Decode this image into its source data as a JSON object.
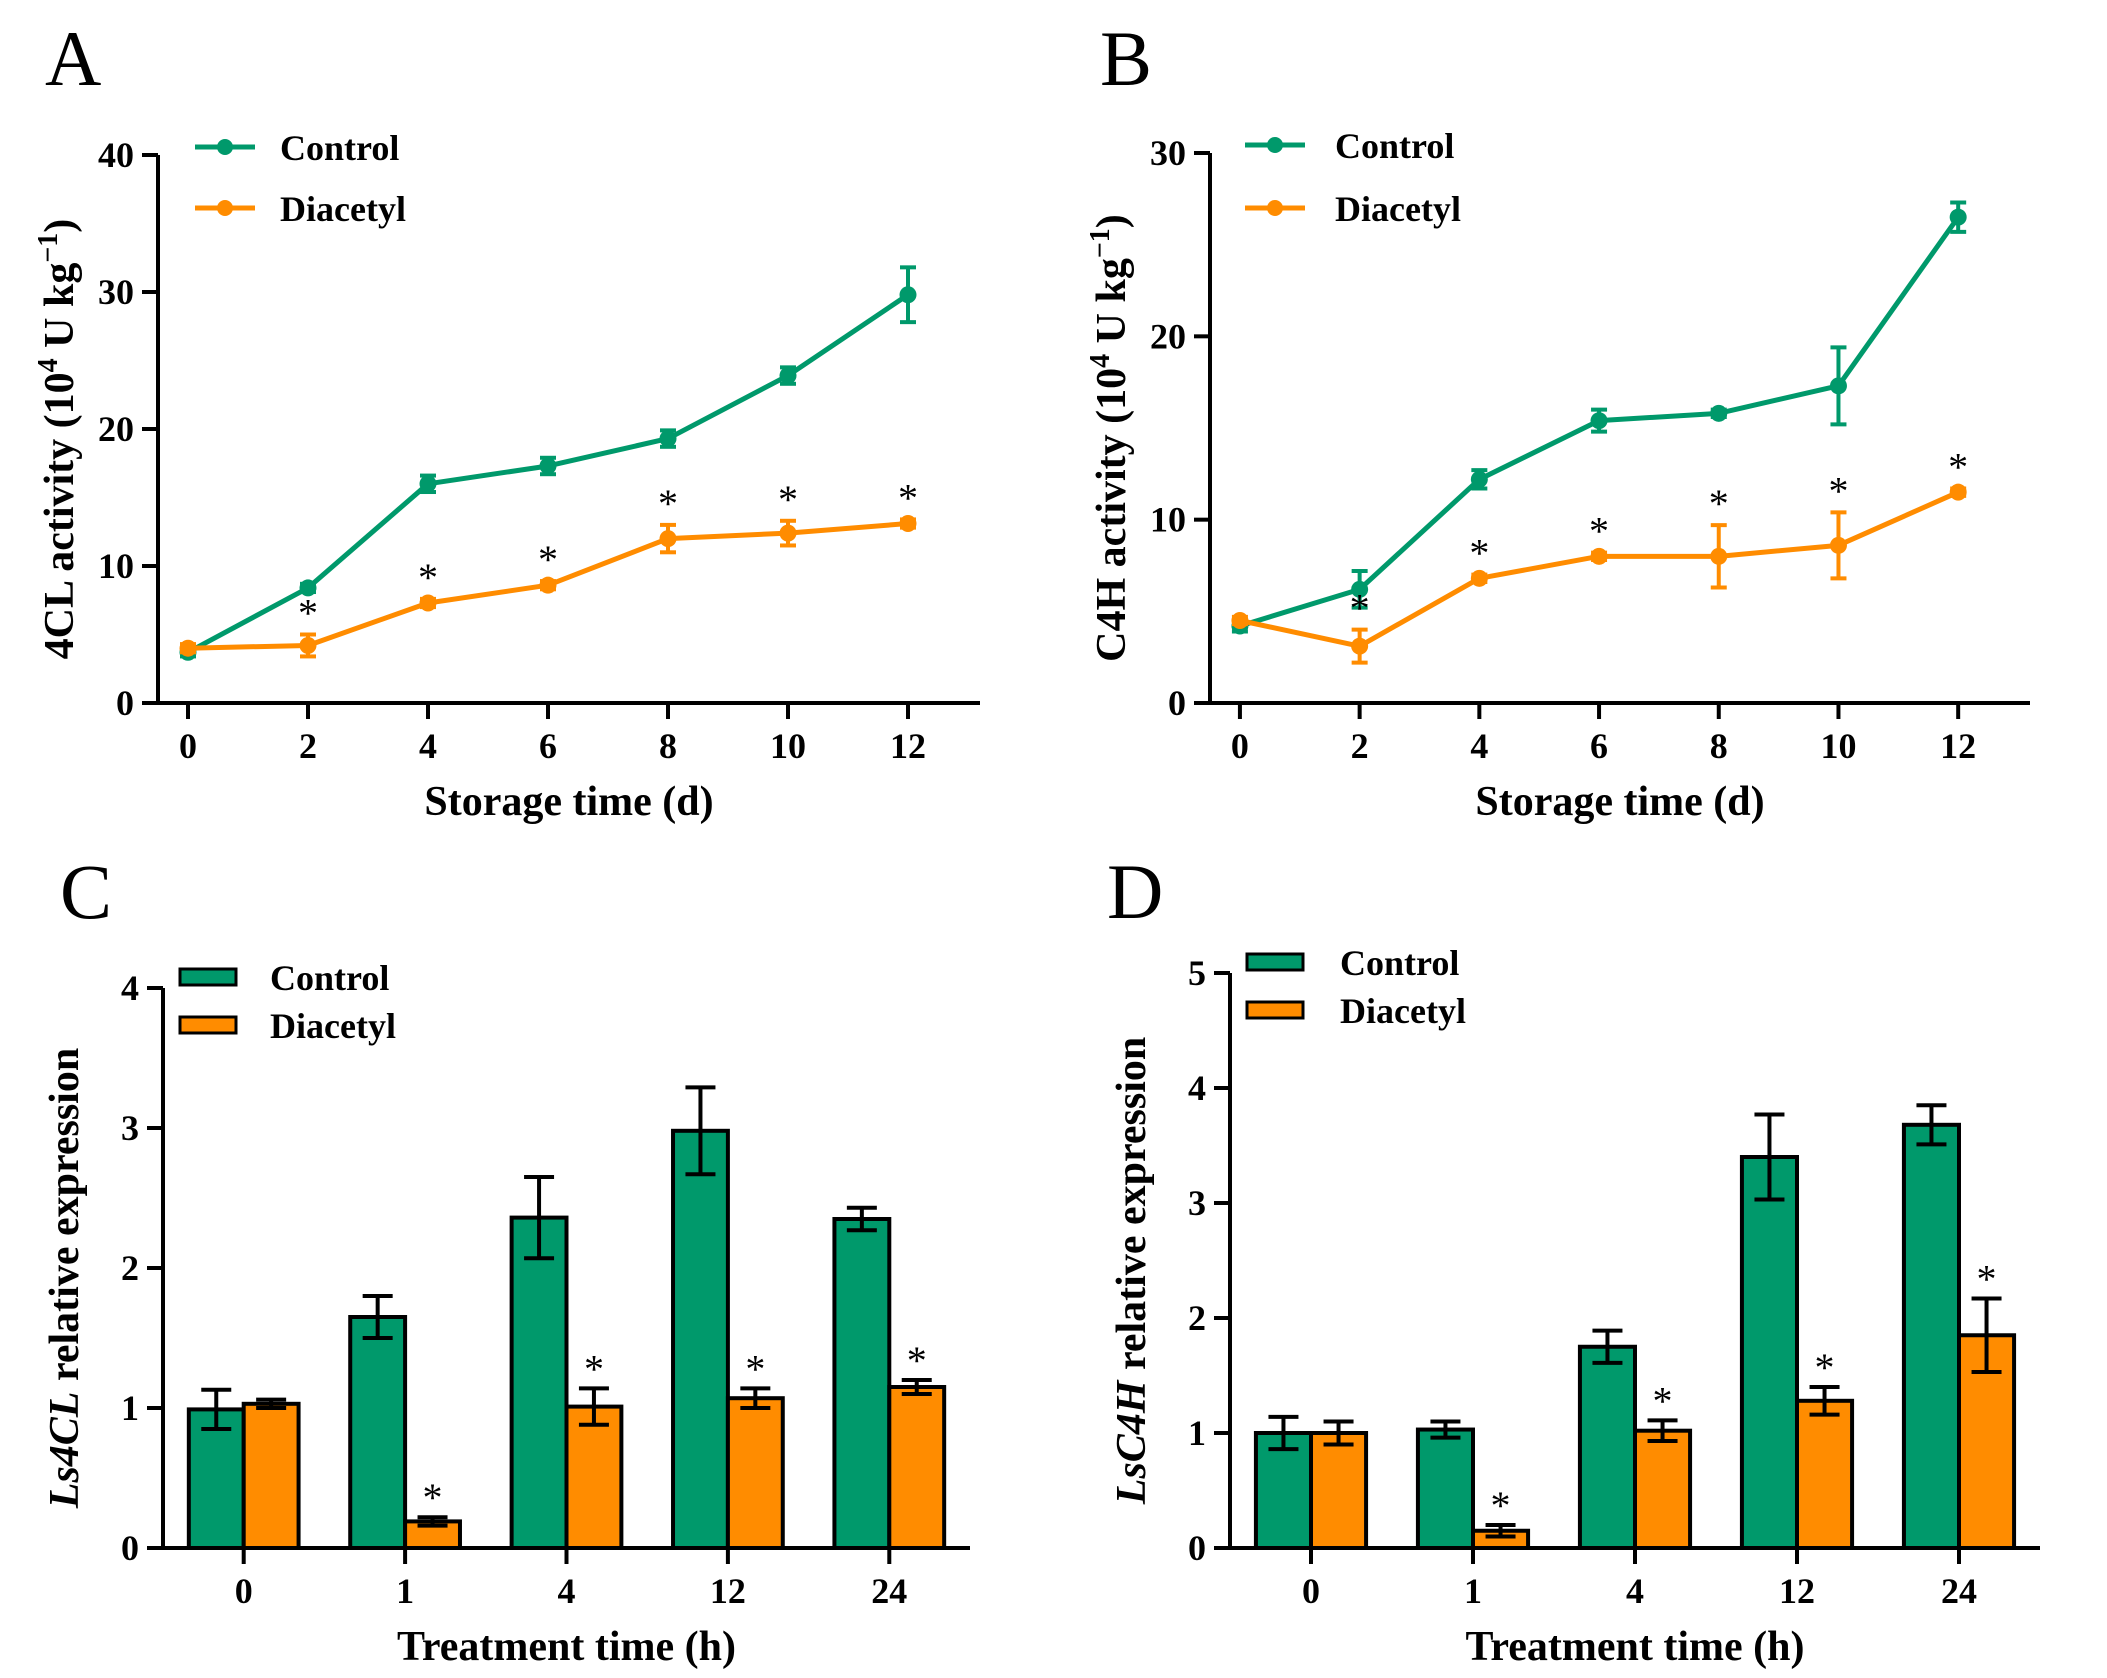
{
  "colors": {
    "control": "#00996B",
    "diacetyl": "#FF8C00",
    "axis": "#000000"
  },
  "chart_data": [
    {
      "panel": "A",
      "type": "line",
      "ylabel": "4CL activity (10",
      "ylabel_sup": "4",
      "ylabel_unit": " U kg",
      "ylabel_sup2": "−1",
      "ylabel_close": ")",
      "xlabel": "Storage time (d)",
      "x": [
        0,
        2,
        4,
        6,
        8,
        10,
        12
      ],
      "xlim": [
        -0.5,
        13.2
      ],
      "ylim": [
        0,
        40
      ],
      "yticks": [
        0,
        10,
        20,
        30,
        40
      ],
      "xticks": [
        0,
        2,
        4,
        6,
        8,
        10,
        12
      ],
      "series": [
        {
          "name": "Control",
          "values": [
            3.7,
            8.4,
            16.0,
            17.3,
            19.3,
            23.9,
            29.8
          ],
          "errors": [
            0.3,
            0.3,
            0.6,
            0.6,
            0.6,
            0.6,
            2.0
          ],
          "sig": [
            false,
            false,
            false,
            false,
            false,
            false,
            false
          ]
        },
        {
          "name": "Diacetyl",
          "values": [
            4.0,
            4.2,
            7.3,
            8.6,
            12.0,
            12.4,
            13.1
          ],
          "errors": [
            0.3,
            0.8,
            0.3,
            0.3,
            1.0,
            0.9,
            0.3
          ],
          "sig": [
            false,
            true,
            true,
            true,
            true,
            true,
            true
          ]
        }
      ],
      "sig_label": "*"
    },
    {
      "panel": "B",
      "type": "line",
      "ylabel": "C4H activity (10",
      "ylabel_sup": "4",
      "ylabel_unit": " U kg",
      "ylabel_sup2": "−1",
      "ylabel_close": ")",
      "xlabel": "Storage time (d)",
      "x": [
        0,
        2,
        4,
        6,
        8,
        10,
        12
      ],
      "xlim": [
        -0.5,
        13.2
      ],
      "ylim": [
        0,
        30
      ],
      "yticks": [
        0,
        10,
        20,
        30
      ],
      "xticks": [
        0,
        2,
        4,
        6,
        8,
        10,
        12
      ],
      "series": [
        {
          "name": "Control",
          "values": [
            4.2,
            6.2,
            12.2,
            15.4,
            15.8,
            17.3,
            26.5
          ],
          "errors": [
            0.3,
            1.0,
            0.5,
            0.6,
            0.2,
            2.1,
            0.8
          ],
          "sig": [
            false,
            false,
            false,
            false,
            false,
            false,
            false
          ]
        },
        {
          "name": "Diacetyl",
          "values": [
            4.5,
            3.1,
            6.8,
            8.0,
            8.0,
            8.6,
            11.5
          ],
          "errors": [
            0.2,
            0.9,
            0.2,
            0.2,
            1.7,
            1.8,
            0.2
          ],
          "sig": [
            false,
            true,
            true,
            true,
            true,
            true,
            true
          ]
        }
      ],
      "sig_label": "*"
    },
    {
      "panel": "C",
      "type": "bar",
      "ylabel_italic": "Ls4CL",
      "ylabel_rest": " relative expression",
      "xlabel": "Treatment time (h)",
      "categories": [
        "0",
        "1",
        "4",
        "12",
        "24"
      ],
      "ylim": [
        0,
        4
      ],
      "yticks": [
        0,
        1,
        2,
        3,
        4
      ],
      "series": [
        {
          "name": "Control",
          "values": [
            0.99,
            1.65,
            2.36,
            2.98,
            2.35
          ],
          "errors": [
            0.14,
            0.15,
            0.29,
            0.31,
            0.08
          ],
          "sig": [
            false,
            false,
            false,
            false,
            false
          ]
        },
        {
          "name": "Diacetyl",
          "values": [
            1.03,
            0.19,
            1.01,
            1.07,
            1.15
          ],
          "errors": [
            0.03,
            0.03,
            0.13,
            0.07,
            0.05
          ],
          "sig": [
            false,
            true,
            true,
            true,
            true
          ]
        }
      ],
      "sig_label": "*"
    },
    {
      "panel": "D",
      "type": "bar",
      "ylabel_italic": "LsC4H",
      "ylabel_rest": " relative expression",
      "xlabel": "Treatment time (h)",
      "categories": [
        "0",
        "1",
        "4",
        "12",
        "24"
      ],
      "ylim": [
        0,
        5
      ],
      "yticks": [
        0,
        1,
        2,
        3,
        4,
        5
      ],
      "series": [
        {
          "name": "Control",
          "values": [
            1.0,
            1.03,
            1.75,
            3.4,
            3.68
          ],
          "errors": [
            0.14,
            0.07,
            0.14,
            0.37,
            0.17
          ],
          "sig": [
            false,
            false,
            false,
            false,
            false
          ]
        },
        {
          "name": "Diacetyl",
          "values": [
            1.0,
            0.15,
            1.02,
            1.28,
            1.85
          ],
          "errors": [
            0.1,
            0.05,
            0.09,
            0.12,
            0.32
          ],
          "sig": [
            false,
            true,
            true,
            true,
            true
          ]
        }
      ],
      "sig_label": "*"
    }
  ]
}
